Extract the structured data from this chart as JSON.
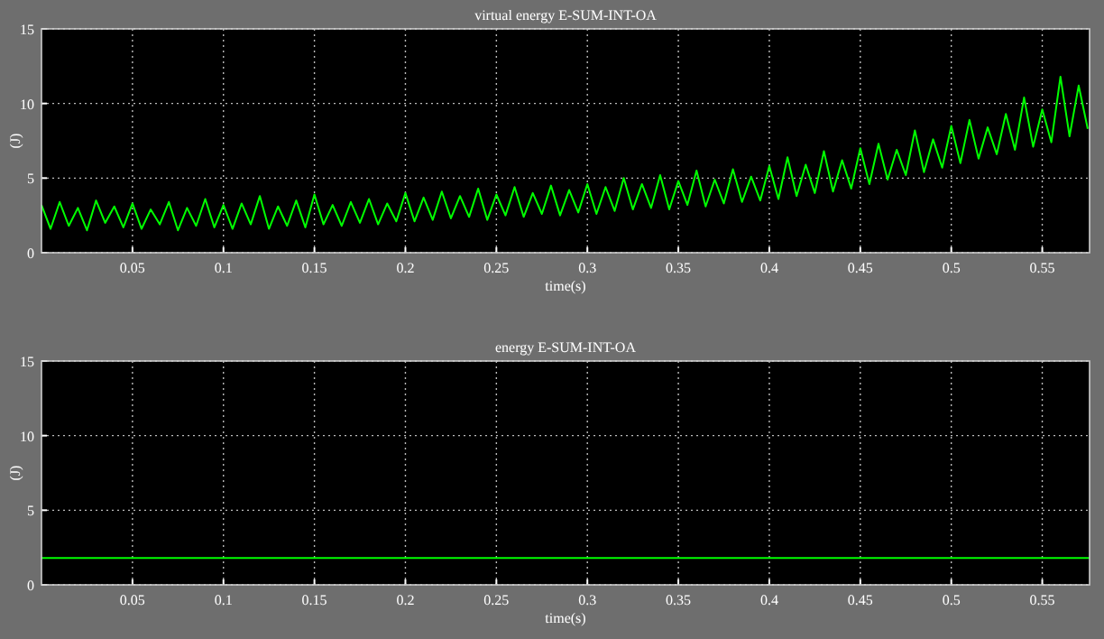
{
  "chart_data": [
    {
      "type": "line",
      "title": "virtual energy E-SUM-INT-OA",
      "xlabel": "time(s)",
      "ylabel": "(J)",
      "xlim": [
        0,
        0.576
      ],
      "ylim": [
        0,
        15
      ],
      "xticks": [
        0.05,
        0.1,
        0.15,
        0.2,
        0.25,
        0.3,
        0.35,
        0.4,
        0.45,
        0.5,
        0.55
      ],
      "yticks": [
        0,
        5,
        10,
        15
      ],
      "grid": true,
      "x": [
        0,
        0.005,
        0.01,
        0.015,
        0.02,
        0.025,
        0.03,
        0.035,
        0.04,
        0.045,
        0.05,
        0.055,
        0.06,
        0.065,
        0.07,
        0.075,
        0.08,
        0.085,
        0.09,
        0.095,
        0.1,
        0.105,
        0.11,
        0.115,
        0.12,
        0.125,
        0.13,
        0.135,
        0.14,
        0.145,
        0.15,
        0.155,
        0.16,
        0.165,
        0.17,
        0.175,
        0.18,
        0.185,
        0.19,
        0.195,
        0.2,
        0.205,
        0.21,
        0.215,
        0.22,
        0.225,
        0.23,
        0.235,
        0.24,
        0.245,
        0.25,
        0.255,
        0.26,
        0.265,
        0.27,
        0.275,
        0.28,
        0.285,
        0.29,
        0.295,
        0.3,
        0.305,
        0.31,
        0.315,
        0.32,
        0.325,
        0.33,
        0.335,
        0.34,
        0.345,
        0.35,
        0.355,
        0.36,
        0.365,
        0.37,
        0.375,
        0.38,
        0.385,
        0.39,
        0.395,
        0.4,
        0.405,
        0.41,
        0.415,
        0.42,
        0.425,
        0.43,
        0.435,
        0.44,
        0.445,
        0.45,
        0.455,
        0.46,
        0.465,
        0.47,
        0.475,
        0.48,
        0.485,
        0.49,
        0.495,
        0.5,
        0.505,
        0.51,
        0.515,
        0.52,
        0.525,
        0.53,
        0.535,
        0.54,
        0.545,
        0.55,
        0.555,
        0.56,
        0.565,
        0.57,
        0.575
      ],
      "series": [
        {
          "color": "#00ff00",
          "values": [
            3.2,
            1.6,
            3.4,
            1.8,
            3.0,
            1.5,
            3.5,
            2.0,
            3.1,
            1.7,
            3.3,
            1.6,
            2.9,
            1.9,
            3.4,
            1.5,
            3.0,
            1.8,
            3.6,
            1.7,
            3.2,
            1.6,
            3.3,
            1.9,
            3.8,
            1.6,
            3.1,
            1.8,
            3.5,
            1.7,
            3.9,
            1.9,
            3.2,
            1.8,
            3.4,
            2.0,
            3.6,
            1.9,
            3.3,
            2.1,
            4.0,
            2.1,
            3.7,
            2.2,
            4.1,
            2.3,
            3.8,
            2.4,
            4.3,
            2.2,
            3.9,
            2.5,
            4.4,
            2.4,
            4.0,
            2.6,
            4.5,
            2.5,
            4.2,
            2.7,
            4.6,
            2.6,
            4.4,
            2.8,
            5.0,
            2.9,
            4.6,
            3.0,
            5.2,
            2.9,
            4.8,
            3.2,
            5.5,
            3.1,
            4.9,
            3.3,
            5.6,
            3.4,
            5.1,
            3.5,
            5.8,
            3.6,
            6.4,
            3.8,
            5.9,
            4.0,
            6.8,
            4.1,
            6.2,
            4.3,
            7.0,
            4.6,
            7.3,
            4.9,
            6.9,
            5.2,
            8.2,
            5.4,
            7.6,
            5.7,
            8.5,
            6.0,
            8.9,
            6.3,
            8.4,
            6.6,
            9.3,
            6.9,
            10.4,
            7.1,
            9.6,
            7.4,
            11.8,
            7.8,
            11.2,
            8.3
          ]
        }
      ]
    },
    {
      "type": "line",
      "title": "energy E-SUM-INT-OA",
      "xlabel": "time(s)",
      "ylabel": "(J)",
      "xlim": [
        0,
        0.576
      ],
      "ylim": [
        0,
        15
      ],
      "xticks": [
        0.05,
        0.1,
        0.15,
        0.2,
        0.25,
        0.3,
        0.35,
        0.4,
        0.45,
        0.5,
        0.55
      ],
      "yticks": [
        0,
        5,
        10,
        15
      ],
      "grid": true,
      "x": [
        0,
        0.576
      ],
      "series": [
        {
          "color": "#00ff00",
          "values": [
            1.8,
            1.8
          ]
        }
      ]
    }
  ]
}
